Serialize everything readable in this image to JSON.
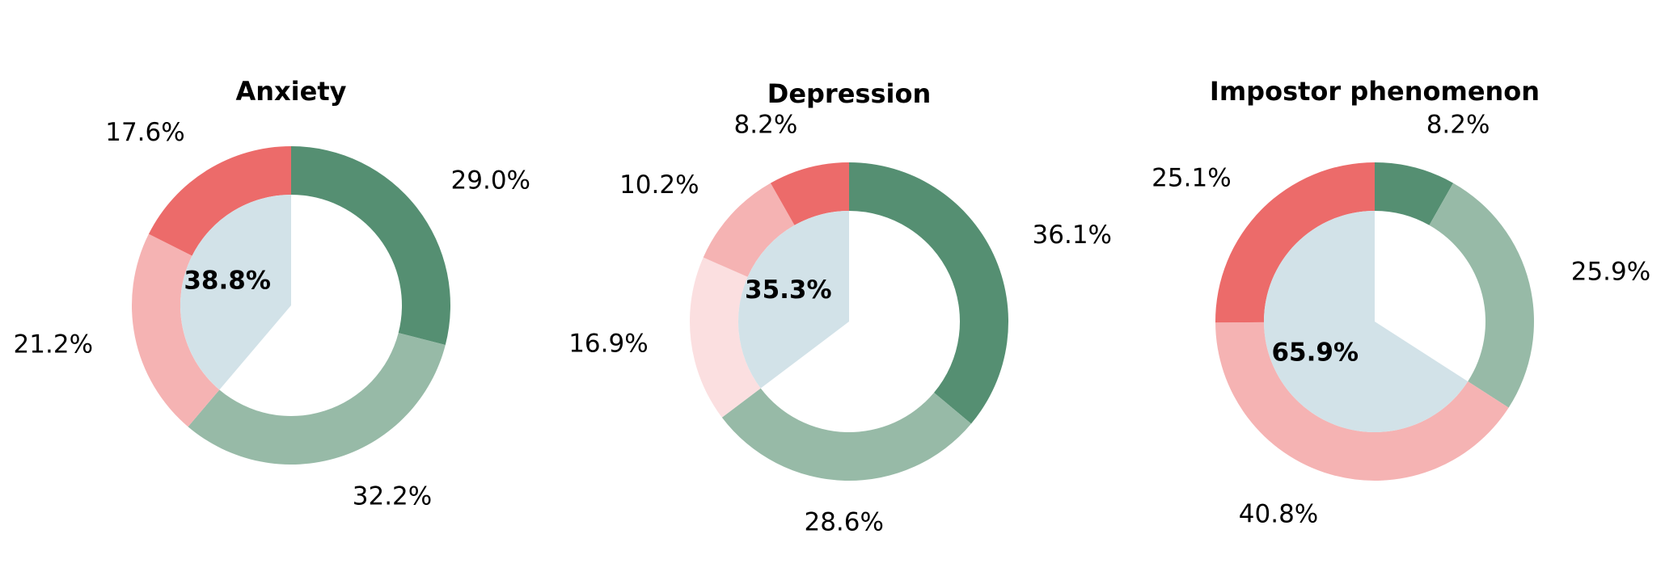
{
  "chart_data": [
    {
      "type": "pie",
      "title": "Anxiety",
      "slices": [
        {
          "value": 29.0,
          "label": "29.0%",
          "color": "#558f72"
        },
        {
          "value": 32.2,
          "label": "32.2%",
          "color": "#97baa7"
        },
        {
          "value": 21.2,
          "label": "21.2%",
          "color": "#f5b3b3"
        },
        {
          "value": 17.6,
          "label": "17.6%",
          "color": "#ec6b6a"
        }
      ],
      "center": {
        "value": 38.8,
        "label": "38.8%",
        "color": "#d2e2e8"
      }
    },
    {
      "type": "pie",
      "title": "Depression",
      "slices": [
        {
          "value": 36.1,
          "label": "36.1%",
          "color": "#558f72"
        },
        {
          "value": 28.6,
          "label": "28.6%",
          "color": "#97baa7"
        },
        {
          "value": 16.9,
          "label": "16.9%",
          "color": "#fbdfe0"
        },
        {
          "value": 10.2,
          "label": "10.2%",
          "color": "#f5b3b3"
        },
        {
          "value": 8.2,
          "label": "8.2%",
          "color": "#ec6b6a"
        }
      ],
      "center": {
        "value": 35.3,
        "label": "35.3%",
        "color": "#d2e2e8"
      }
    },
    {
      "type": "pie",
      "title": "Impostor phenomenon",
      "slices": [
        {
          "value": 8.2,
          "label": "8.2%",
          "color": "#558f72"
        },
        {
          "value": 25.9,
          "label": "25.9%",
          "color": "#97baa7"
        },
        {
          "value": 40.8,
          "label": "40.8%",
          "color": "#f5b3b3"
        },
        {
          "value": 25.1,
          "label": "25.1%",
          "color": "#ec6b6a"
        }
      ],
      "center": {
        "value": 65.9,
        "label": "65.9%",
        "color": "#d2e2e8"
      }
    }
  ]
}
